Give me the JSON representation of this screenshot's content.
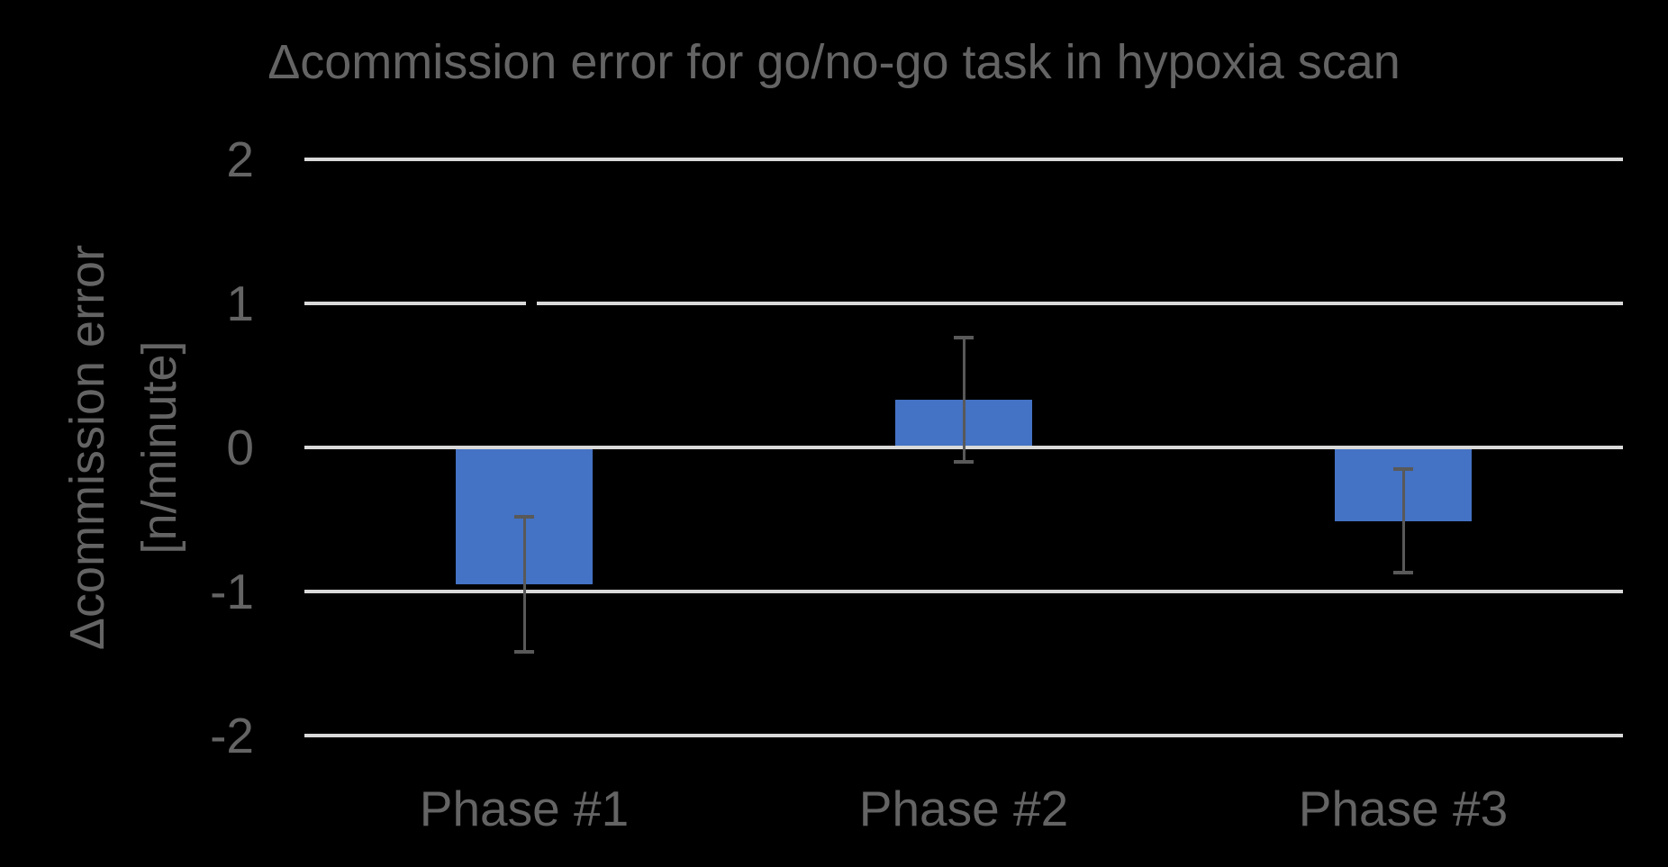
{
  "chart_data": {
    "type": "bar",
    "title": "Δcommission error for go/no-go task in hypoxia scan",
    "ylabel_line1": "Δcommission error",
    "ylabel_line2": "[n/minute]",
    "xlabel": "",
    "categories": [
      "Phase #1",
      "Phase #2",
      "Phase #3"
    ],
    "series": [
      {
        "name": "Δcommission error",
        "values": [
          -0.95,
          0.33,
          -0.51
        ],
        "errors": [
          0.47,
          0.43,
          0.36
        ]
      }
    ],
    "ylim": [
      -2,
      2
    ],
    "yticks": [
      2,
      1,
      0,
      -1,
      -2
    ],
    "grid": "horizontal gridlines on, vertical off",
    "legend": "none",
    "colors": {
      "background": "#000000",
      "bar": "#4472C4",
      "error_bar": "#595959",
      "gridline": "#D9D9D9",
      "text": "#646464"
    }
  }
}
